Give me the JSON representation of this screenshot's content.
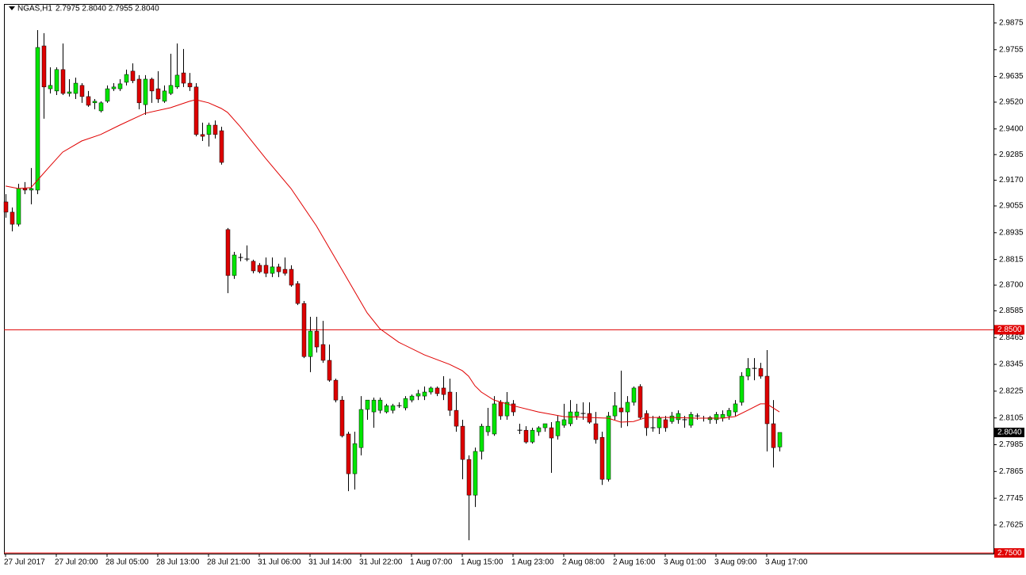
{
  "chart_data": {
    "type": "candlestick",
    "title": "NGAS,H1",
    "quote": "2.7975 2.8040 2.7955 2.8040",
    "categories": [
      "27 Jul 2017",
      null,
      null,
      null,
      null,
      null,
      null,
      null,
      "27 Jul 20:00",
      null,
      null,
      null,
      null,
      null,
      null,
      null,
      "28 Jul 05:00",
      null,
      null,
      null,
      null,
      null,
      null,
      null,
      "28 Jul 13:00",
      null,
      null,
      null,
      null,
      null,
      null,
      null,
      "28 Jul 21:00",
      null,
      null,
      null,
      null,
      null,
      null,
      null,
      "31 Jul 06:00",
      null,
      null,
      null,
      null,
      null,
      null,
      null,
      "31 Jul 14:00",
      null,
      null,
      null,
      null,
      null,
      null,
      null,
      "31 Jul 22:00",
      null,
      null,
      null,
      null,
      null,
      null,
      null,
      "1 Aug 07:00",
      null,
      null,
      null,
      null,
      null,
      null,
      null,
      "1 Aug 15:00",
      null,
      null,
      null,
      null,
      null,
      null,
      null,
      "1 Aug 23:00",
      null,
      null,
      null,
      null,
      null,
      null,
      null,
      "2 Aug 08:00",
      null,
      null,
      null,
      null,
      null,
      null,
      null,
      "2 Aug 16:00",
      null,
      null,
      null,
      null,
      null,
      null,
      null,
      "3 Aug 01:00",
      null,
      null,
      null,
      null,
      null,
      null,
      null,
      "3 Aug 09:00",
      null,
      null,
      null,
      null,
      null,
      null,
      null,
      "3 Aug 17:00",
      null,
      null
    ],
    "ohlc": {
      "up_color": "#00e600",
      "down_color": "#dd0000",
      "open": [
        2.9073,
        2.9027,
        2.8973,
        2.9133,
        2.9126,
        2.9126,
        2.9772,
        2.958,
        2.957,
        2.9666,
        2.9559,
        2.9559,
        2.9595,
        2.9545,
        2.9517,
        2.9481,
        2.9524,
        2.958,
        2.958,
        2.9609,
        2.9659,
        2.9623,
        2.9509,
        2.9623,
        2.958,
        2.9524,
        2.9559,
        2.9588,
        2.9651,
        2.9605,
        2.9588,
        2.9375,
        2.9375,
        2.9417,
        2.9392,
        2.8949,
        2.8743,
        2.8824,
        2.8817,
        2.8807,
        2.8789,
        2.8789,
        2.8753,
        2.8782,
        2.8771,
        2.8771,
        2.8707,
        2.8618,
        2.838,
        2.8494,
        2.8434,
        2.8363,
        2.8274,
        2.8185,
        2.8033,
        2.7855,
        2.7972,
        2.8143,
        2.8132,
        2.8139,
        2.8132,
        2.8139,
        2.816,
        2.815,
        2.8185,
        2.8203,
        2.8203,
        2.8221,
        2.8239,
        2.8239,
        2.8221,
        2.8139,
        2.8068,
        2.7919,
        2.7759,
        2.7955,
        2.8043,
        2.8033,
        2.8175,
        2.8114,
        2.8168,
        2.805,
        2.805,
        2.7997,
        2.8043,
        2.8061,
        2.8061,
        2.8025,
        2.8072,
        2.8079,
        2.8114,
        2.8125,
        2.8125,
        2.8079,
        2.8018,
        2.783,
        2.8114,
        2.815,
        2.8132,
        2.8175,
        2.8246,
        2.8125,
        2.8061,
        2.8061,
        2.8097,
        2.8089,
        2.8097,
        2.8097,
        2.8072,
        2.8114,
        2.8104,
        2.8097,
        2.8097,
        2.8104,
        2.8114,
        2.8132,
        2.8175,
        2.8292,
        2.8327,
        2.8327,
        2.8292,
        2.8079,
        2.7975
      ],
      "high": [
        2.9108,
        2.9048,
        2.9154,
        2.9162,
        2.9225,
        2.9843,
        2.9829,
        2.9676,
        2.9676,
        2.9783,
        2.9623,
        2.963,
        2.9605,
        2.957,
        2.9534,
        2.9524,
        2.9595,
        2.9605,
        2.9623,
        2.9666,
        2.9694,
        2.9641,
        2.9641,
        2.963,
        2.9659,
        2.9595,
        2.9737,
        2.9783,
        2.9758,
        2.9651,
        2.9605,
        2.9428,
        2.9428,
        2.9438,
        2.941,
        2.8956,
        2.8849,
        2.8842,
        2.8878,
        2.8814,
        2.8799,
        2.8824,
        2.8824,
        2.8796,
        2.8824,
        2.8789,
        2.8718,
        2.8629,
        2.8558,
        2.8558,
        2.854,
        2.8434,
        2.8281,
        2.8203,
        2.8043,
        2.8043,
        2.8203,
        2.8185,
        2.8196,
        2.8196,
        2.8168,
        2.8168,
        2.8175,
        2.8203,
        2.821,
        2.8231,
        2.8246,
        2.8246,
        2.8246,
        2.8292,
        2.8281,
        2.8221,
        2.8097,
        2.7937,
        2.7972,
        2.8079,
        2.815,
        2.8203,
        2.8185,
        2.8221,
        2.8185,
        2.8079,
        2.8068,
        2.8061,
        2.8068,
        2.8079,
        2.8086,
        2.8114,
        2.8168,
        2.8185,
        2.8168,
        2.8175,
        2.8175,
        2.8132,
        2.8043,
        2.8132,
        2.8221,
        2.8317,
        2.8203,
        2.8246,
        2.8256,
        2.8139,
        2.8114,
        2.8114,
        2.8114,
        2.8132,
        2.8139,
        2.8114,
        2.8132,
        2.8125,
        2.8114,
        2.8114,
        2.8132,
        2.8139,
        2.815,
        2.8185,
        2.831,
        2.8373,
        2.8373,
        2.8352,
        2.8409,
        2.8185,
        2.804
      ],
      "low": [
        2.9002,
        2.8941,
        2.8963,
        2.9108,
        2.9062,
        2.9108,
        2.9446,
        2.9559,
        2.9552,
        2.9552,
        2.9545,
        2.9534,
        2.9517,
        2.9499,
        2.9488,
        2.9474,
        2.9517,
        2.957,
        2.957,
        2.9595,
        2.9605,
        2.9488,
        2.9463,
        2.9517,
        2.9517,
        2.9517,
        2.9552,
        2.958,
        2.9588,
        2.957,
        2.9367,
        2.9346,
        2.9321,
        2.9357,
        2.924,
        2.8664,
        2.8728,
        2.8807,
        2.8807,
        2.8753,
        2.8753,
        2.8736,
        2.8736,
        2.8736,
        2.8743,
        2.8693,
        2.8611,
        2.8373,
        2.831,
        2.8398,
        2.8352,
        2.8267,
        2.8175,
        2.8018,
        2.7777,
        2.7784,
        2.7937,
        2.8097,
        2.8061,
        2.8125,
        2.8125,
        2.8125,
        2.815,
        2.8139,
        2.8175,
        2.8185,
        2.8185,
        2.821,
        2.8203,
        2.8185,
        2.8114,
        2.8043,
        2.783,
        2.7557,
        2.7706,
        2.7919,
        2.8025,
        2.8025,
        2.8097,
        2.8097,
        2.8114,
        2.8033,
        2.799,
        2.799,
        2.8025,
        2.8043,
        2.7859,
        2.8008,
        2.8061,
        2.8068,
        2.8097,
        2.8097,
        2.8079,
        2.799,
        2.7805,
        2.782,
        2.8097,
        2.8061,
        2.8068,
        2.816,
        2.8097,
        2.8025,
        2.8043,
        2.8033,
        2.8043,
        2.8079,
        2.8079,
        2.8061,
        2.8061,
        2.8097,
        2.8089,
        2.8079,
        2.8079,
        2.8089,
        2.8097,
        2.8114,
        2.816,
        2.8274,
        2.8274,
        2.8281,
        2.7955,
        2.7883,
        2.7955
      ],
      "close": [
        2.9027,
        2.8973,
        2.9133,
        2.9126,
        2.9133,
        2.9765,
        2.9588,
        2.9595,
        2.9666,
        2.9559,
        2.9566,
        2.9605,
        2.9545,
        2.9506,
        2.9524,
        2.9517,
        2.958,
        2.9588,
        2.9602,
        2.9644,
        2.9616,
        2.9517,
        2.9623,
        2.957,
        2.9534,
        2.957,
        2.9595,
        2.9641,
        2.9605,
        2.9588,
        2.9375,
        2.9367,
        2.9417,
        2.9375,
        2.925,
        2.8743,
        2.8835,
        2.8824,
        2.8817,
        2.8764,
        2.876,
        2.8753,
        2.8782,
        2.876,
        2.8753,
        2.87,
        2.8618,
        2.838,
        2.8494,
        2.8423,
        2.8363,
        2.8274,
        2.8185,
        2.8025,
        2.7855,
        2.799,
        2.8143,
        2.8185,
        2.8185,
        2.8185,
        2.816,
        2.816,
        2.816,
        2.8192,
        2.8203,
        2.8214,
        2.8221,
        2.8239,
        2.8214,
        2.821,
        2.8139,
        2.8068,
        2.7919,
        2.7759,
        2.7955,
        2.8068,
        2.8068,
        2.8168,
        2.8114,
        2.8175,
        2.8132,
        2.805,
        2.7997,
        2.805,
        2.8061,
        2.8079,
        2.8015,
        2.8089,
        2.8097,
        2.8132,
        2.8132,
        2.8125,
        2.8086,
        2.8008,
        2.783,
        2.8114,
        2.816,
        2.8132,
        2.8175,
        2.8239,
        2.8107,
        2.8061,
        2.8061,
        2.8104,
        2.8061,
        2.8114,
        2.8125,
        2.8097,
        2.8121,
        2.8114,
        2.8104,
        2.8107,
        2.8121,
        2.8121,
        2.8139,
        2.8168,
        2.8292,
        2.8327,
        2.8327,
        2.8292,
        2.8079,
        2.7972,
        2.804
      ]
    },
    "ma": {
      "color": "#e00000",
      "x": [
        0,
        2,
        4,
        5,
        7,
        9,
        12,
        15,
        18,
        22,
        26,
        29,
        30,
        32,
        34,
        35,
        37,
        41,
        45,
        49,
        53,
        57,
        59,
        62,
        66,
        70,
        72,
        73,
        74,
        75,
        77,
        80,
        84,
        88,
        92,
        95,
        97,
        99,
        101,
        105,
        109,
        113,
        115,
        117,
        119,
        120,
        122
      ],
      "values": [
        2.9144,
        2.9133,
        2.9137,
        2.9169,
        2.9233,
        2.9296,
        2.9346,
        2.9375,
        2.9417,
        2.947,
        2.9495,
        2.9524,
        2.9531,
        2.9517,
        2.9492,
        2.9474,
        2.941,
        2.9268,
        2.9133,
        2.8966,
        2.8771,
        2.8576,
        2.8505,
        2.8444,
        2.8388,
        2.8345,
        2.8317,
        2.8292,
        2.8249,
        2.8221,
        2.8185,
        2.816,
        2.8132,
        2.8111,
        2.8107,
        2.8104,
        2.8086,
        2.8089,
        2.8107,
        2.8107,
        2.8104,
        2.8104,
        2.8111,
        2.8139,
        2.8168,
        2.8168,
        2.8132
      ]
    },
    "ylim": [
      2.7497,
      2.996
    ],
    "yticks": [
      2.7625,
      2.7745,
      2.7865,
      2.7985,
      2.8105,
      2.8225,
      2.8345,
      2.8465,
      2.8585,
      {
        "value": 2.87,
        "label": "2.8700"
      },
      2.8815,
      2.8935,
      2.9055,
      {
        "value": 2.917,
        "label": "2.9170"
      },
      2.9285,
      {
        "value": 2.94,
        "label": "2.9400"
      },
      {
        "value": 2.952,
        "label": "2.9520"
      },
      2.9635,
      2.9755,
      2.9875
    ],
    "hlines": [
      {
        "value": 2.85,
        "label": "2.8500",
        "color": "#e00000"
      },
      {
        "value": 2.75,
        "label": "2.7500",
        "color": "#e00000"
      }
    ],
    "price_tag": {
      "value": 2.804,
      "label": "2.8040",
      "color": "#000000"
    }
  }
}
